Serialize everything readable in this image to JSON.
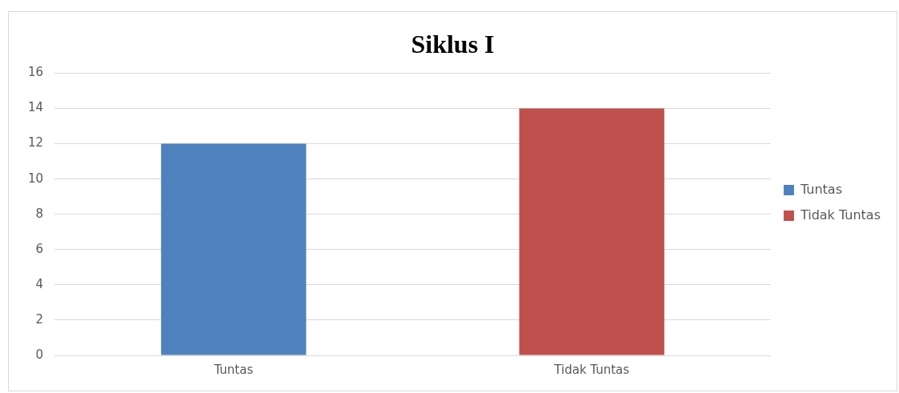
{
  "chart_data": {
    "type": "bar",
    "title": "Siklus I",
    "categories": [
      "Tuntas",
      "Tidak Tuntas"
    ],
    "series": [
      {
        "name": "Tuntas",
        "color": "#4f81bd",
        "values": [
          12,
          null
        ]
      },
      {
        "name": "Tidak Tuntas",
        "color": "#c0504d",
        "values": [
          null,
          14
        ]
      }
    ],
    "ylim": [
      0,
      16
    ],
    "yticks": [
      0,
      2,
      4,
      6,
      8,
      10,
      12,
      14,
      16
    ],
    "grid": "y",
    "legend": "right"
  }
}
